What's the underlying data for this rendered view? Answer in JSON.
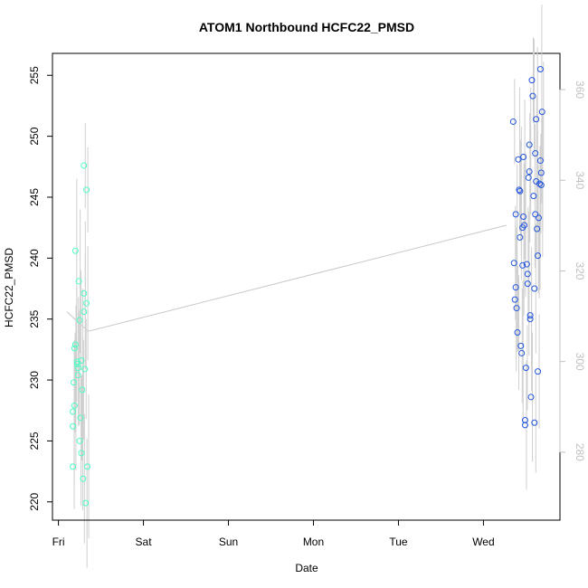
{
  "chart_data": {
    "type": "scatter",
    "title": "ATOM1 Northbound HCFC22_PMSD",
    "xlabel": "Date",
    "ylabel": "HCFC22_PMSD",
    "x_ticks": [
      "Fri",
      "Sat",
      "Sun",
      "Mon",
      "Tue",
      "Wed"
    ],
    "y_ticks": [
      220,
      225,
      230,
      235,
      240,
      245,
      250,
      255
    ],
    "y2_ticks": [
      280,
      300,
      320,
      340,
      360
    ],
    "xlim_days": [
      -0.07,
      5.9
    ],
    "ylim": [
      218.5,
      256.8
    ],
    "y2lim": [
      265,
      368
    ],
    "colors": {
      "series1": "#4dffc2",
      "series2": "#2255dd",
      "line": "#c8c8c8",
      "right_axis": "#c0c0c0"
    },
    "series": [
      {
        "color": "#4dffc2",
        "points": [
          [
            0.17,
            222.9
          ],
          [
            0.17,
            226.2
          ],
          [
            0.17,
            227.4
          ],
          [
            0.18,
            229.8
          ],
          [
            0.19,
            227.9
          ],
          [
            0.19,
            232.6
          ],
          [
            0.2,
            232.9
          ],
          [
            0.2,
            240.6
          ],
          [
            0.22,
            231.3
          ],
          [
            0.22,
            231.5
          ],
          [
            0.23,
            230.4
          ],
          [
            0.23,
            231.0
          ],
          [
            0.24,
            238.1
          ],
          [
            0.25,
            234.9
          ],
          [
            0.25,
            225.0
          ],
          [
            0.26,
            226.9
          ],
          [
            0.27,
            224.0
          ],
          [
            0.27,
            231.6
          ],
          [
            0.28,
            229.2
          ],
          [
            0.29,
            221.9
          ],
          [
            0.3,
            247.6
          ],
          [
            0.3,
            235.6
          ],
          [
            0.3,
            237.1
          ],
          [
            0.31,
            230.9
          ],
          [
            0.32,
            219.9
          ],
          [
            0.33,
            245.6
          ],
          [
            0.33,
            236.3
          ],
          [
            0.34,
            222.9
          ]
        ]
      },
      {
        "color": "#2255dd",
        "points": [
          [
            5.35,
            251.2
          ],
          [
            5.36,
            239.6
          ],
          [
            5.37,
            236.6
          ],
          [
            5.38,
            243.6
          ],
          [
            5.38,
            237.6
          ],
          [
            5.39,
            235.9
          ],
          [
            5.4,
            233.9
          ],
          [
            5.41,
            248.1
          ],
          [
            5.42,
            245.6
          ],
          [
            5.43,
            245.5
          ],
          [
            5.43,
            241.7
          ],
          [
            5.44,
            232.8
          ],
          [
            5.45,
            232.2
          ],
          [
            5.46,
            239.4
          ],
          [
            5.46,
            242.5
          ],
          [
            5.47,
            243.4
          ],
          [
            5.47,
            248.3
          ],
          [
            5.48,
            242.7
          ],
          [
            5.49,
            226.7
          ],
          [
            5.49,
            226.3
          ],
          [
            5.5,
            231.0
          ],
          [
            5.51,
            239.5
          ],
          [
            5.52,
            237.9
          ],
          [
            5.52,
            238.7
          ],
          [
            5.53,
            246.6
          ],
          [
            5.54,
            247.1
          ],
          [
            5.54,
            249.3
          ],
          [
            5.55,
            235.0
          ],
          [
            5.55,
            235.3
          ],
          [
            5.56,
            228.6
          ],
          [
            5.57,
            254.6
          ],
          [
            5.58,
            253.3
          ],
          [
            5.59,
            245.1
          ],
          [
            5.6,
            226.5
          ],
          [
            5.6,
            237.5
          ],
          [
            5.61,
            243.6
          ],
          [
            5.61,
            248.6
          ],
          [
            5.62,
            251.4
          ],
          [
            5.62,
            246.3
          ],
          [
            5.63,
            242.4
          ],
          [
            5.64,
            240.2
          ],
          [
            5.64,
            230.7
          ],
          [
            5.65,
            243.3
          ],
          [
            5.66,
            246.1
          ],
          [
            5.67,
            255.5
          ],
          [
            5.67,
            248.0
          ],
          [
            5.68,
            247.0
          ],
          [
            5.68,
            246.0
          ],
          [
            5.69,
            252.0
          ]
        ]
      }
    ],
    "trend_line": [
      [
        0.1,
        235.6
      ],
      [
        0.35,
        234.0
      ],
      [
        5.27,
        242.7
      ]
    ]
  }
}
